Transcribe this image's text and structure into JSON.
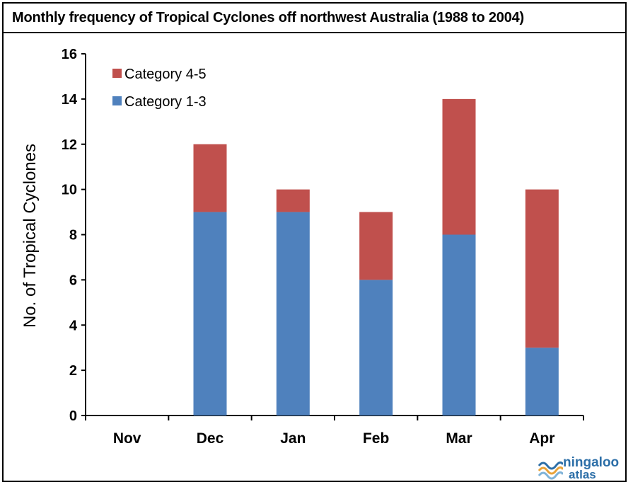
{
  "title": "Monthly frequency of Tropical Cyclones off northwest Australia  (1988 to 2004)",
  "logo": {
    "line1": "ningaloo",
    "line2": "atlas",
    "icon": "wave-icon",
    "color": "#2d6fa8",
    "accent": "#e8a33a"
  },
  "chart_data": {
    "type": "bar",
    "stacked": true,
    "categories": [
      "Nov",
      "Dec",
      "Jan",
      "Feb",
      "Mar",
      "Apr"
    ],
    "series": [
      {
        "name": "Category 1-3",
        "color": "#4f81bd",
        "values": [
          0,
          9,
          9,
          6,
          8,
          3
        ]
      },
      {
        "name": "Category 4-5",
        "color": "#c0504d",
        "values": [
          0,
          3,
          1,
          3,
          6,
          7
        ]
      }
    ],
    "ylabel": "No. of Tropical Cyclones",
    "xlabel": "",
    "ylim": [
      0,
      16
    ],
    "yticks": [
      "0",
      "2",
      "4",
      "6",
      "8",
      "10",
      "12",
      "14",
      "16"
    ],
    "grid": false,
    "legend_position": "top-left"
  }
}
